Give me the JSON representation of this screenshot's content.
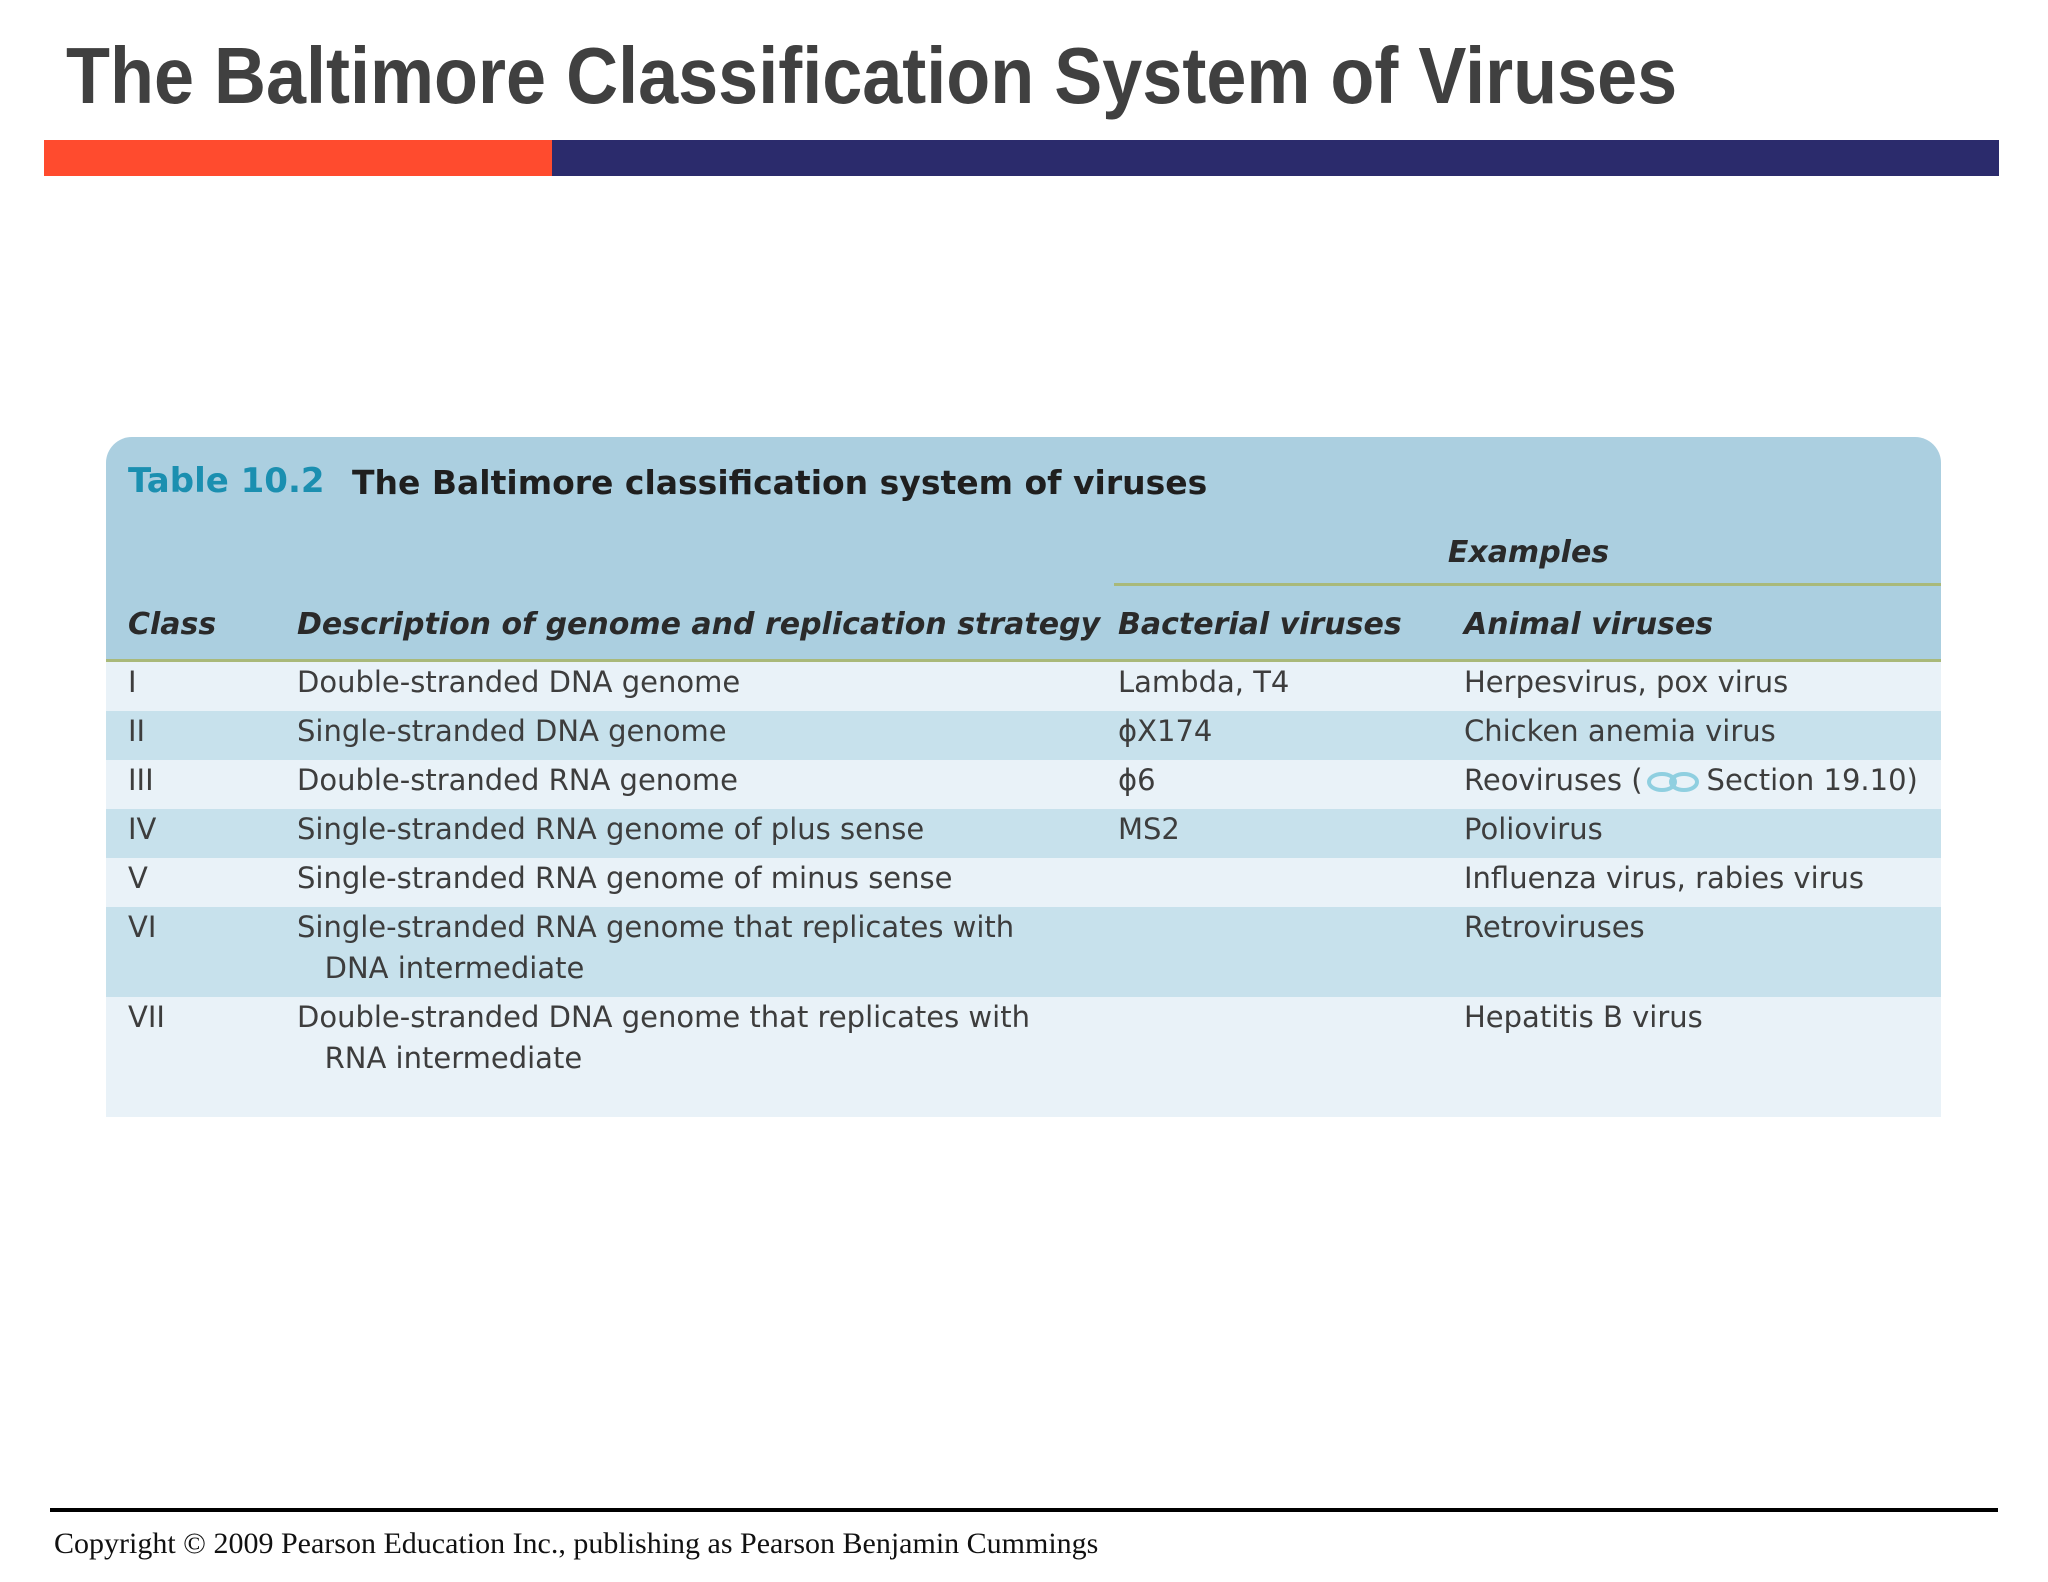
{
  "slide": {
    "title": "The Baltimore Classification System of Viruses",
    "colors": {
      "accent_bar": "#ff4b2e",
      "main_bar": "#2b2b6c",
      "caption_number": "#1b8fb0",
      "header_background": "#abcfe0",
      "row_alternate": "#c7e1ec",
      "row_base": "#e9f2f8"
    }
  },
  "table": {
    "caption_number": "Table 10.2",
    "caption_title": "The Baltimore classification system of viruses",
    "group_header": "Examples",
    "columns": {
      "class": "Class",
      "description": "Description of genome and replication strategy",
      "bacterial": "Bacterial viruses",
      "animal": "Animal viruses"
    },
    "rows": [
      {
        "class": "I",
        "description": "Double-stranded DNA genome",
        "bacterial": "Lambda, T4",
        "animal": "Herpesvirus, pox virus"
      },
      {
        "class": "II",
        "description": "Single-stranded DNA genome",
        "bacterial": "ϕX174",
        "animal": "Chicken anemia virus"
      },
      {
        "class": "III",
        "description": "Double-stranded RNA genome",
        "bacterial": "ϕ6",
        "animal_prefix": "Reoviruses (",
        "animal_icon": "link-icon",
        "animal_suffix": "Section 19.10)"
      },
      {
        "class": "IV",
        "description": "Single-stranded RNA genome of plus sense",
        "bacterial": "MS2",
        "animal": "Poliovirus"
      },
      {
        "class": "V",
        "description": "Single-stranded RNA genome of minus sense",
        "bacterial": "",
        "animal": "Influenza virus, rabies virus"
      },
      {
        "class": "VI",
        "description": "Single-stranded RNA genome that replicates with\n   DNA intermediate",
        "bacterial": "",
        "animal": "Retroviruses"
      },
      {
        "class": "VII",
        "description": "Double-stranded DNA genome that replicates with\n   RNA intermediate",
        "bacterial": "",
        "animal": "Hepatitis B virus"
      }
    ]
  },
  "footer": {
    "copyright": "Copyright © 2009 Pearson Education Inc., publishing as Pearson Benjamin Cummings"
  }
}
